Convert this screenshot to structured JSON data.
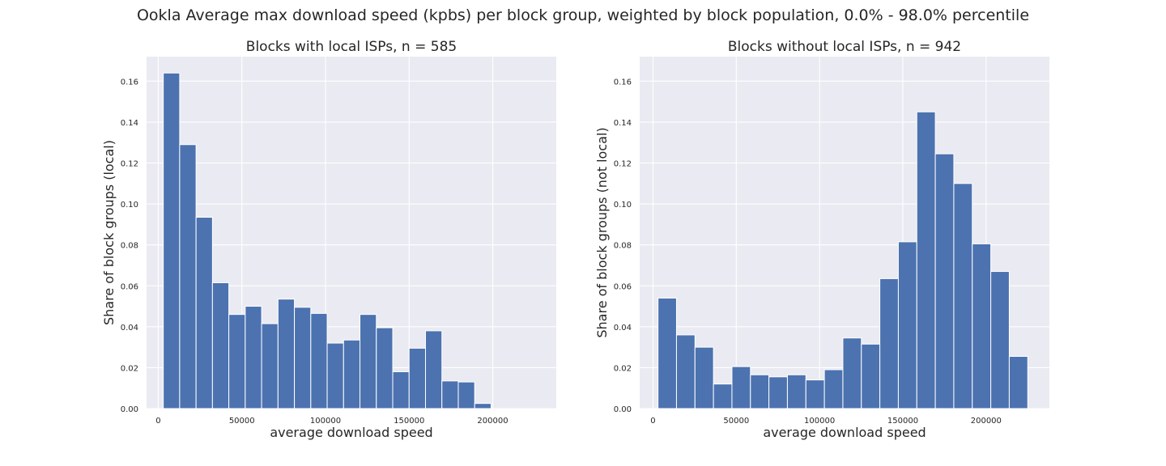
{
  "suptitle": "Ookla Average max download speed (kpbs) per block group, weighted by block population, 0.0% - 98.0% percentile",
  "colors": {
    "bar": "#4c72b0",
    "plot_bg": "#eaeaf2",
    "grid": "#ffffff"
  },
  "chart_data": [
    {
      "type": "bar",
      "title": "Blocks with local ISPs, n = 585",
      "xlabel": "average download speed",
      "ylabel": "Share of block groups (local)",
      "xlim": [
        -7000,
        238000
      ],
      "ylim": [
        0,
        0.172
      ],
      "xticks": [
        0,
        50000,
        100000,
        150000,
        200000
      ],
      "yticks": [
        0.0,
        0.02,
        0.04,
        0.06,
        0.08,
        0.1,
        0.12,
        0.14,
        0.16
      ],
      "bin_start": 3000,
      "bin_width": 9800,
      "values": [
        0.164,
        0.129,
        0.0935,
        0.0615,
        0.046,
        0.05,
        0.0415,
        0.0535,
        0.0495,
        0.0465,
        0.032,
        0.0335,
        0.046,
        0.0395,
        0.018,
        0.0295,
        0.038,
        0.0135,
        0.013,
        0.0025
      ],
      "grid": true
    },
    {
      "type": "bar",
      "title": "Blocks without local ISPs, n = 942",
      "xlabel": "average download speed",
      "ylabel": "Share of block groups (not local)",
      "xlim": [
        -8000,
        238000
      ],
      "ylim": [
        0,
        0.172
      ],
      "xticks": [
        0,
        50000,
        100000,
        150000,
        200000
      ],
      "yticks": [
        0.0,
        0.02,
        0.04,
        0.06,
        0.08,
        0.1,
        0.12,
        0.14,
        0.16
      ],
      "bin_start": 3000,
      "bin_width": 11100,
      "values": [
        0.054,
        0.036,
        0.03,
        0.012,
        0.0205,
        0.0165,
        0.0155,
        0.0165,
        0.014,
        0.019,
        0.0345,
        0.0315,
        0.0635,
        0.0815,
        0.145,
        0.1245,
        0.11,
        0.0805,
        0.067,
        0.0255
      ],
      "grid": true
    }
  ]
}
